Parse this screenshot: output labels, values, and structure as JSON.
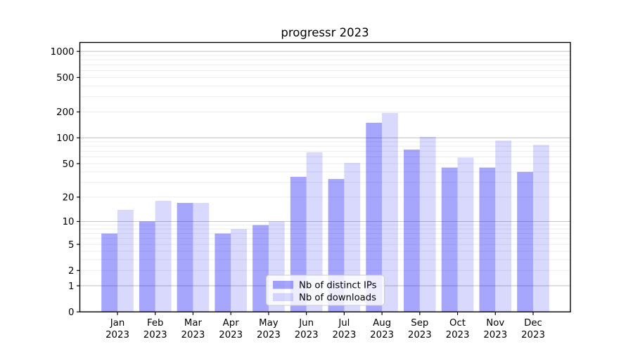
{
  "chart_data": {
    "type": "bar",
    "title": "progressr 2023",
    "xlabel": "",
    "ylabel": "",
    "year": "2023",
    "categories": [
      "Jan",
      "Feb",
      "Mar",
      "Apr",
      "May",
      "Jun",
      "Jul",
      "Aug",
      "Sep",
      "Oct",
      "Nov",
      "Dec"
    ],
    "series": [
      {
        "name": "Nb of distinct IPs",
        "color": "rgba(0,0,245,0.35)",
        "values": [
          7,
          10,
          17,
          7,
          9,
          35,
          33,
          150,
          73,
          45,
          45,
          40
        ]
      },
      {
        "name": "Nb of downloads",
        "color": "rgba(0,0,245,0.15)",
        "values": [
          14,
          18,
          17,
          8,
          10,
          68,
          51,
          195,
          103,
          59,
          93,
          83
        ]
      }
    ],
    "yscale": "log1p",
    "ylim": [
      0,
      1267
    ],
    "y_tick_values": [
      0,
      1,
      2,
      5,
      10,
      20,
      50,
      100,
      200,
      500,
      1000
    ],
    "y_major_gridlines": [
      1,
      10,
      100,
      1000
    ],
    "y_minor_gridlines": [
      2,
      3,
      4,
      5,
      6,
      7,
      8,
      9,
      20,
      30,
      40,
      50,
      60,
      70,
      80,
      90,
      200,
      300,
      400,
      500,
      600,
      700,
      800,
      900
    ],
    "grid": true,
    "legend_position": "lower center"
  },
  "colors": {
    "background": "#ffffff",
    "axis": "#000000",
    "major_grid": "#c6c6c6",
    "minor_grid": "#ededed",
    "bar_distinct_ips_rendered": "#a7a7f7",
    "bar_downloads_rendered": "#d9d9f8",
    "legend_border": "#cccccc"
  }
}
